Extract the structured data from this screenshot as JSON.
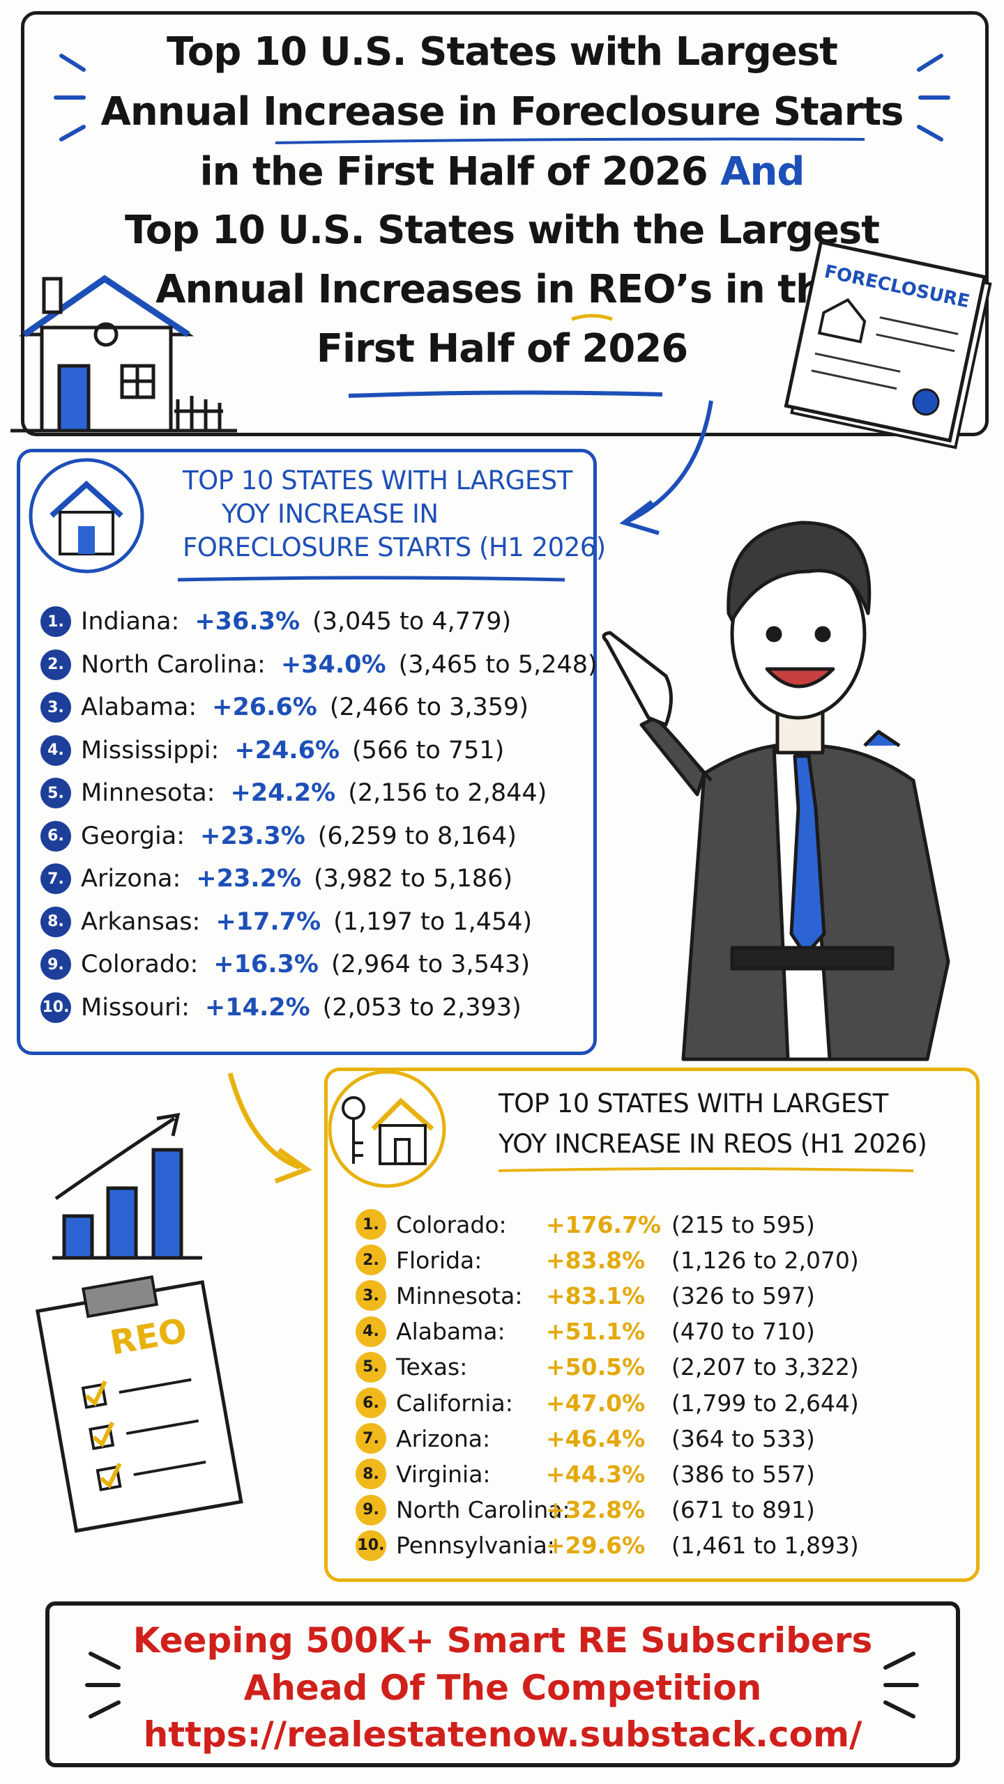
{
  "header": {
    "title_part1_lines": [
      "Top 10 U.S. States with Largest",
      "Annual Increase in Foreclosure Starts",
      "in the First Half of 2026"
    ],
    "connector": "And",
    "title_part2_lines": [
      "Top 10 U.S. States with the Largest",
      "Annual Increases in REO’s in the",
      "First Half of 2026"
    ]
  },
  "illustration": {
    "document_label": "FORECLOSURE",
    "clipboard_label": "REO"
  },
  "foreclosure_starts": {
    "heading_lines": [
      "TOP 10 STATES WITH LARGEST",
      "YOY INCREASE IN",
      "FORECLOSURE STARTS (H1 2026)"
    ],
    "rows": [
      {
        "rank": "1.",
        "state": "Indiana:",
        "change": "+36.3%",
        "detail": "(3,045 to 4,779)"
      },
      {
        "rank": "2.",
        "state": "North Carolina:",
        "change": "+34.0%",
        "detail": "(3,465 to 5,248)"
      },
      {
        "rank": "3.",
        "state": "Alabama:",
        "change": "+26.6%",
        "detail": "(2,466 to 3,359)"
      },
      {
        "rank": "4.",
        "state": "Mississippi:",
        "change": "+24.6%",
        "detail": "(566 to 751)"
      },
      {
        "rank": "5.",
        "state": "Minnesota:",
        "change": "+24.2%",
        "detail": "(2,156 to 2,844)"
      },
      {
        "rank": "6.",
        "state": "Georgia:",
        "change": "+23.3%",
        "detail": "(6,259 to 8,164)"
      },
      {
        "rank": "7.",
        "state": "Arizona:",
        "change": "+23.2%",
        "detail": "(3,982 to 5,186)"
      },
      {
        "rank": "8.",
        "state": "Arkansas:",
        "change": "+17.7%",
        "detail": "(1,197 to 1,454)"
      },
      {
        "rank": "9.",
        "state": "Colorado:",
        "change": "+16.3%",
        "detail": "(2,964 to 3,543)"
      },
      {
        "rank": "10.",
        "state": "Missouri:",
        "change": "+14.2%",
        "detail": "(2,053 to 2,393)"
      }
    ]
  },
  "reos": {
    "heading_lines": [
      "TOP 10 STATES WITH LARGEST",
      "YOY INCREASE IN REOS (H1 2026)"
    ],
    "rows": [
      {
        "rank": "1.",
        "state": "Colorado:",
        "change": "+176.7%",
        "detail": "(215 to 595)"
      },
      {
        "rank": "2.",
        "state": "Florida:",
        "change": "+83.8%",
        "detail": "(1,126 to 2,070)"
      },
      {
        "rank": "3.",
        "state": "Minnesota:",
        "change": "+83.1%",
        "detail": "(326 to 597)"
      },
      {
        "rank": "4.",
        "state": "Alabama:",
        "change": "+51.1%",
        "detail": "(470 to 710)"
      },
      {
        "rank": "5.",
        "state": "Texas:",
        "change": "+50.5%",
        "detail": "(2,207 to 3,322)"
      },
      {
        "rank": "6.",
        "state": "California:",
        "change": "+47.0%",
        "detail": "(1,799 to 2,644)"
      },
      {
        "rank": "7.",
        "state": "Arizona:",
        "change": "+46.4%",
        "detail": "(364 to 533)"
      },
      {
        "rank": "8.",
        "state": "Virginia:",
        "change": "+44.3%",
        "detail": "(386 to 557)"
      },
      {
        "rank": "9.",
        "state": "North Carolina:",
        "change": "+32.8%",
        "detail": "(671 to 891)"
      },
      {
        "rank": "10.",
        "state": "Pennsylvania:",
        "change": "+29.6%",
        "detail": "(1,461 to 1,893)"
      }
    ]
  },
  "footer": {
    "lines": [
      "Keeping 500K+ Smart RE Subscribers",
      "Ahead Of The Competition",
      "https://realestatenow.substack.com/"
    ]
  }
}
